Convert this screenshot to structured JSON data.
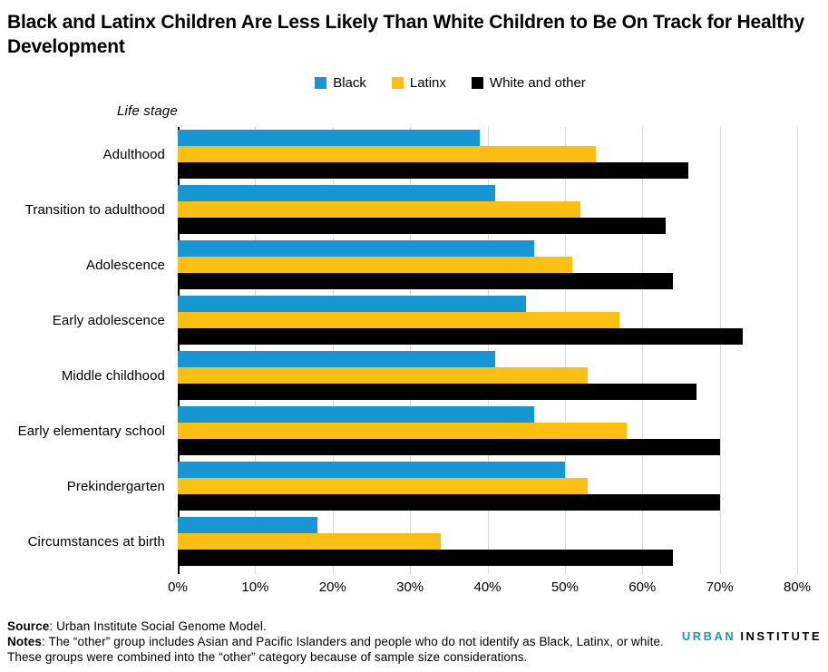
{
  "header": {
    "title": "Black and Latinx Children Are Less Likely Than White Children to Be On Track for Healthy Development"
  },
  "chart_data": {
    "type": "bar",
    "orientation": "horizontal",
    "axis_label": "Life stage",
    "categories": [
      "Adulthood",
      "Transition to adulthood",
      "Adolescence",
      "Early adolescence",
      "Middle childhood",
      "Early elementary school",
      "Prekindergarten",
      "Circumstances at birth"
    ],
    "series": [
      {
        "name": "Black",
        "color": "#1696d2",
        "values": [
          39,
          41,
          46,
          45,
          41,
          46,
          50,
          18
        ]
      },
      {
        "name": "Latinx",
        "color": "#fdbf11",
        "values": [
          54,
          52,
          51,
          57,
          53,
          58,
          53,
          34
        ]
      },
      {
        "name": "White and other",
        "color": "#000000",
        "values": [
          66,
          63,
          64,
          73,
          67,
          70,
          70,
          64
        ]
      }
    ],
    "xlim": [
      0,
      80
    ],
    "x_tick_labels": [
      "0%",
      "10%",
      "20%",
      "30%",
      "40%",
      "50%",
      "60%",
      "70%",
      "80%"
    ],
    "grid": "vertical-gridlines",
    "legend_position": "top-center",
    "units": "percent"
  },
  "footer": {
    "source_label": "Source",
    "source_text": ": Urban Institute Social Genome Model.",
    "notes_label": "Notes",
    "notes_text": ": The “other” group includes Asian and Pacific Islanders and people who do not identify as Black, Latinx, or white.",
    "notes_text_2": "These groups were combined into the “other” category because of sample size considerations."
  },
  "logo": {
    "part1": "URBAN",
    "part2": "INSTITUTE"
  }
}
